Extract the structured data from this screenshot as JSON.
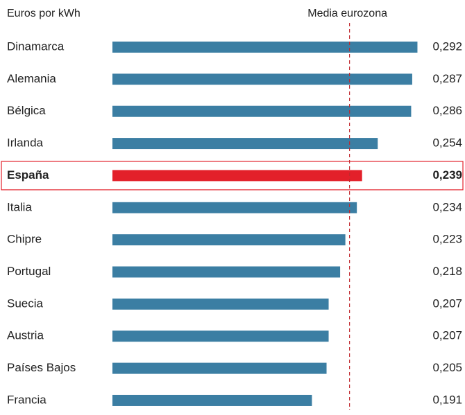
{
  "chart_data": {
    "type": "bar",
    "orientation": "horizontal",
    "title": "Euros por kWh",
    "categories": [
      "Dinamarca",
      "Alemania",
      "Bélgica",
      "Irlanda",
      "España",
      "Italia",
      "Chipre",
      "Portugal",
      "Suecia",
      "Austria",
      "Países Bajos",
      "Francia"
    ],
    "values": [
      0.292,
      0.287,
      0.286,
      0.254,
      0.239,
      0.234,
      0.223,
      0.218,
      0.207,
      0.207,
      0.205,
      0.191
    ],
    "value_labels": [
      "0,292",
      "0,287",
      "0,286",
      "0,254",
      "0,239",
      "0,234",
      "0,223",
      "0,218",
      "0,207",
      "0,207",
      "0,205",
      "0,191"
    ],
    "color": "#3b7ea3",
    "highlight": "España",
    "highlight_color": "#e3202a",
    "xlim": [
      0,
      0.3
    ],
    "reference_line": {
      "label": "Media eurozona",
      "value": 0.227,
      "color": "#c0282d"
    }
  }
}
